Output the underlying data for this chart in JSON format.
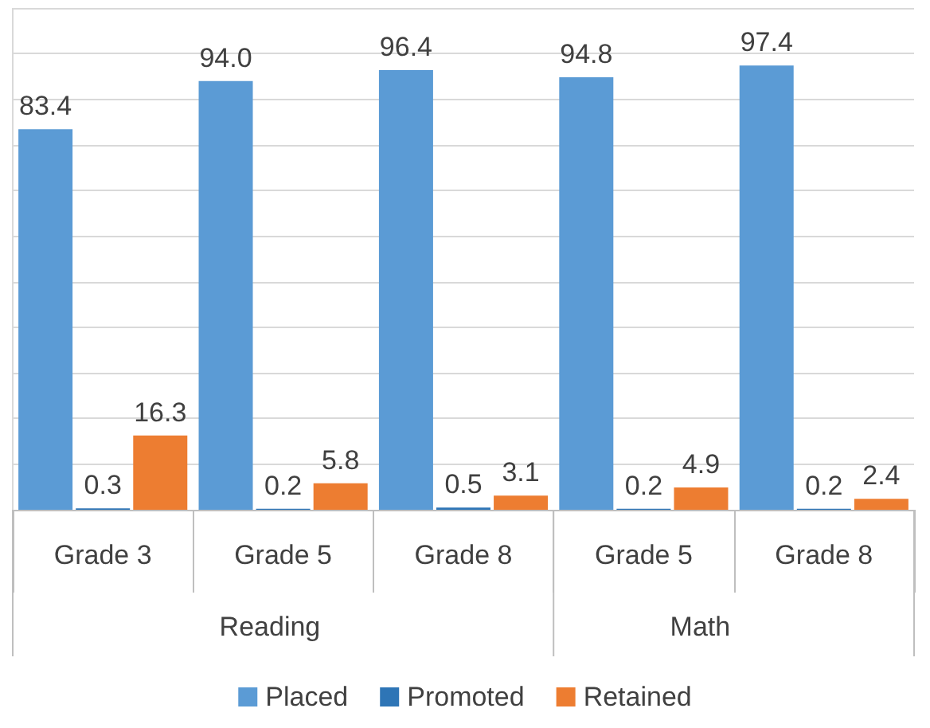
{
  "chart_data": {
    "type": "bar",
    "categories": [
      "Grade 3",
      "Grade 5",
      "Grade 8",
      "Grade 5",
      "Grade 8"
    ],
    "series": [
      {
        "name": "Placed",
        "color": "#5b9bd5",
        "values": [
          83.4,
          94.0,
          96.4,
          94.8,
          97.4
        ],
        "value_labels": [
          "83.4",
          "94.0",
          "96.4",
          "94.8",
          "97.4"
        ]
      },
      {
        "name": "Promoted",
        "color": "#2e75b6",
        "values": [
          0.3,
          0.2,
          0.5,
          0.2,
          0.2
        ],
        "value_labels": [
          "0.3",
          "0.2",
          "0.5",
          "0.2",
          "0.2"
        ]
      },
      {
        "name": "Retained",
        "color": "#ed7d31",
        "values": [
          16.3,
          5.8,
          3.1,
          4.9,
          2.4
        ],
        "value_labels": [
          "16.3",
          "5.8",
          "3.1",
          "4.9",
          "2.4"
        ]
      }
    ],
    "annotations": [
      "Reading",
      "Math"
    ],
    "ylim": [
      0,
      110
    ],
    "yticks": [
      {
        "value": 0,
        "label": null
      },
      {
        "value": 10,
        "label": null
      },
      {
        "value": 20,
        "label": null
      },
      {
        "value": 30,
        "label": null
      },
      {
        "value": 40,
        "label": null
      },
      {
        "value": 50,
        "label": null
      },
      {
        "value": 60,
        "label": null
      },
      {
        "value": 70,
        "label": null
      },
      {
        "value": 80,
        "label": null
      },
      {
        "value": 90,
        "label": null
      },
      {
        "value": 100,
        "label": null
      },
      {
        "value": 110,
        "label": null
      }
    ],
    "tick_labels": "x",
    "grid": "y",
    "legend": "bottom"
  }
}
